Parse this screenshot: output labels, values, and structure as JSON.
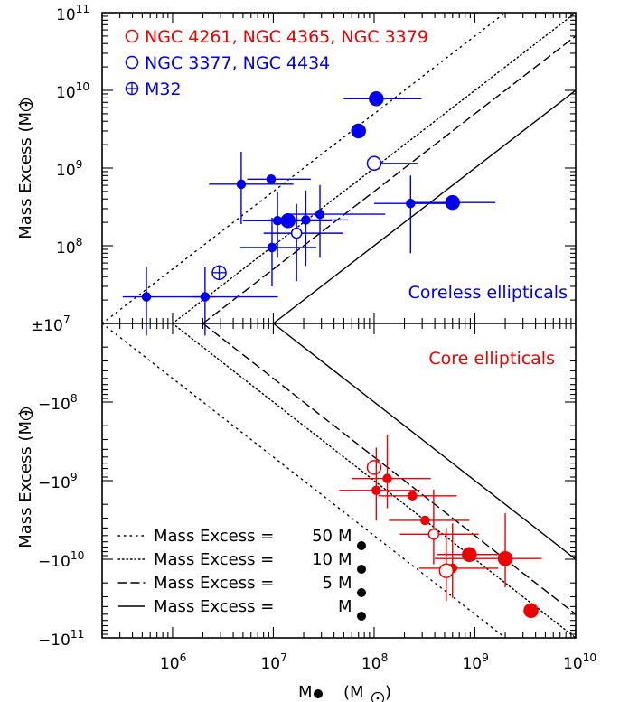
{
  "chart_data": {
    "type": "scatter",
    "x_axis": {
      "label": "M",
      "label_unit": "(M",
      "label_unit_close": ")",
      "scale": "log",
      "range": [
        200000,
        10000000000
      ],
      "ticks": [
        {
          "value": 1000000,
          "base": "10",
          "exp": "6"
        },
        {
          "value": 10000000,
          "base": "10",
          "exp": "7"
        },
        {
          "value": 100000000,
          "base": "10",
          "exp": "8"
        },
        {
          "value": 1000000000,
          "base": "10",
          "exp": "9"
        },
        {
          "value": 10000000000,
          "base": "10",
          "exp": "10"
        }
      ]
    },
    "panels": [
      {
        "id": "top",
        "label": "Coreless ellipticals",
        "label_color": "#0000ee",
        "y_axis": {
          "label": "Mass Excess",
          "unit": "(M",
          "unit_close": ")",
          "scale": "log",
          "range": [
            10000000,
            100000000000
          ],
          "ticks": [
            {
              "value": 100000000000,
              "base": "10",
              "exp": "11"
            },
            {
              "value": 10000000000,
              "base": "10",
              "exp": "10"
            },
            {
              "value": 1000000000,
              "base": "10",
              "exp": "9"
            },
            {
              "value": 100000000,
              "base": "10",
              "exp": "8"
            }
          ]
        },
        "legend": [
          {
            "symbol": "open-circle",
            "color": "#ee0000",
            "text": "NGC 4261, NGC 4365, NGC 3379"
          },
          {
            "symbol": "open-circle",
            "color": "#0000ee",
            "text": "NGC 3377, NGC 4434"
          },
          {
            "symbol": "crossed-circle",
            "color": "#0000ee",
            "text": "M32"
          }
        ],
        "points": [
          {
            "x": 105000000,
            "y": 7800000000,
            "xerr": [
              55000000,
              190000000
            ],
            "yerr": [
              7800000000,
              7800000000
            ],
            "size": "large",
            "fill": true,
            "color": "#0000ee"
          },
          {
            "x": 70000000,
            "y": 3000000000,
            "xerr": [
              70000000,
              70000000
            ],
            "yerr": [
              3000000000,
              3000000000
            ],
            "size": "large",
            "fill": true,
            "color": "#0000ee"
          },
          {
            "x": 100000000,
            "y": 1150000000,
            "xerr": [
              100000000,
              170000000
            ],
            "yerr": [
              1150000000,
              1150000000
            ],
            "size": "large",
            "fill": false,
            "color": "#0000ee"
          },
          {
            "x": 4800000,
            "y": 620000000,
            "xerr": [
              2500000,
              11000000
            ],
            "yerr": [
              430000000,
              1000000000
            ],
            "size": "small",
            "fill": true,
            "color": "#0000ee"
          },
          {
            "x": 9500000,
            "y": 720000000,
            "xerr": [
              4000000,
              14000000
            ],
            "yerr": [
              720000000,
              720000000
            ],
            "size": "small",
            "fill": true,
            "color": "#0000ee"
          },
          {
            "x": 600000000,
            "y": 360000000,
            "xerr": [
              350000000,
              1000000000
            ],
            "yerr": [
              360000000,
              360000000
            ],
            "size": "large",
            "fill": true,
            "color": "#0000ee"
          },
          {
            "x": 230000000,
            "y": 350000000,
            "xerr": [
              130000000,
              400000000
            ],
            "yerr": [
              270000000,
              450000000
            ],
            "size": "small",
            "fill": true,
            "color": "#0000ee"
          },
          {
            "x": 11000000,
            "y": 210000000,
            "xerr": [
              6000000,
              18000000
            ],
            "yerr": [
              140000000,
              290000000
            ],
            "size": "small",
            "fill": true,
            "color": "#0000ee"
          },
          {
            "x": 14000000,
            "y": 210000000,
            "xerr": [
              7000000,
              24000000
            ],
            "yerr": [
              210000000,
              210000000
            ],
            "size": "large",
            "fill": true,
            "color": "#0000ee"
          },
          {
            "x": 21000000,
            "y": 215000000,
            "xerr": [
              12000000,
              34000000
            ],
            "yerr": [
              160000000,
              300000000
            ],
            "size": "small",
            "fill": true,
            "color": "#0000ee"
          },
          {
            "x": 29000000,
            "y": 255000000,
            "xerr": [
              15000000,
              100000000
            ],
            "yerr": [
              185000000,
              350000000
            ],
            "size": "small",
            "fill": true,
            "color": "#0000ee"
          },
          {
            "x": 17000000,
            "y": 145000000,
            "xerr": [
              9000000,
              32000000
            ],
            "yerr": [
              110000000,
              200000000
            ],
            "size": "medium",
            "fill": false,
            "color": "#0000ee"
          },
          {
            "x": 9700000,
            "y": 95000000,
            "xerr": [
              5000000,
              17000000
            ],
            "yerr": [
              65000000,
              135000000
            ],
            "size": "small",
            "fill": true,
            "color": "#0000ee"
          },
          {
            "x": 2900000,
            "y": 45000000,
            "xerr": [
              2900000,
              2900000
            ],
            "yerr": [
              45000000,
              45000000
            ],
            "size": "large",
            "fill": false,
            "cross": true,
            "color": "#0000ee"
          },
          {
            "x": 550000,
            "y": 22000000,
            "xerr": [
              230000,
              2100000
            ],
            "yerr": [
              15000000,
              32000000
            ],
            "size": "small",
            "fill": true,
            "color": "#0000ee"
          },
          {
            "x": 2100000,
            "y": 22000000,
            "xerr": [
              550000,
              9000000
            ],
            "yerr": [
              15000000,
              32000000
            ],
            "size": "small",
            "fill": true,
            "color": "#0000ee"
          }
        ]
      },
      {
        "id": "bottom",
        "label": "Core ellipticals",
        "label_color": "#ee0000",
        "y_axis": {
          "label": "Mass Excess",
          "unit": "(M",
          "unit_close": ")",
          "scale": "negative-log",
          "range": [
            -10000000,
            -100000000000
          ],
          "ticks": [
            {
              "value": -100000000,
              "base": "−10",
              "exp": "8"
            },
            {
              "value": -1000000000,
              "base": "−10",
              "exp": "9"
            },
            {
              "value": -10000000000,
              "base": "−10",
              "exp": "10"
            },
            {
              "value": -100000000000,
              "base": "−10",
              "exp": "11"
            }
          ]
        },
        "points": [
          {
            "x": 100000000,
            "y": -680000000,
            "xerr": [
              100000000,
              100000000
            ],
            "yerr": [
              680000000,
              680000000
            ],
            "size": "large",
            "fill": false,
            "color": "#ee0000"
          },
          {
            "x": 135000000,
            "y": -940000000,
            "xerr": [
              75000000,
              230000000
            ],
            "yerr": [
              680000000,
              1300000000
            ],
            "size": "small",
            "fill": true,
            "color": "#ee0000"
          },
          {
            "x": 105000000,
            "y": -1330000000,
            "xerr": [
              60000000,
              180000000
            ],
            "yerr": [
              950000000,
              1900000000
            ],
            "size": "small",
            "fill": true,
            "color": "#ee0000"
          },
          {
            "x": 240000000,
            "y": -1560000000,
            "xerr": [
              130000000,
              420000000
            ],
            "yerr": [
              1560000000,
              1560000000
            ],
            "size": "small",
            "fill": true,
            "color": "#ee0000"
          },
          {
            "x": 320000000,
            "y": -3200000000,
            "xerr": [
              180000000,
              560000000
            ],
            "yerr": [
              3200000000,
              3200000000
            ],
            "size": "small",
            "fill": true,
            "color": "#ee0000"
          },
          {
            "x": 390000000,
            "y": -4800000000,
            "xerr": [
              210000000,
              700000000
            ],
            "yerr": [
              3500000000,
              6800000000
            ],
            "size": "medium",
            "fill": false,
            "color": "#ee0000"
          },
          {
            "x": 880000000,
            "y": -8700000000,
            "xerr": [
              460000000,
              880000000
            ],
            "yerr": [
              8700000000,
              8700000000
            ],
            "size": "large",
            "fill": true,
            "color": "#ee0000"
          },
          {
            "x": 2000000000,
            "y": -9800000000,
            "xerr": [
              1600000000,
              2600000000
            ],
            "yerr": [
              7200000000,
              13000000000
            ],
            "size": "large",
            "fill": true,
            "color": "#ee0000"
          },
          {
            "x": 600000000,
            "y": -13000000000,
            "xerr": [
              320000000,
              1100000000
            ],
            "yerr": [
              9500000000,
              18000000000
            ],
            "size": "small",
            "fill": true,
            "color": "#ee0000"
          },
          {
            "x": 520000000,
            "y": -14000000000,
            "xerr": [
              520000000,
              520000000
            ],
            "yerr": [
              10000000000,
              20000000000
            ],
            "size": "large",
            "fill": false,
            "color": "#ee0000"
          },
          {
            "x": 3600000000,
            "y": -45000000000,
            "xerr": [
              3600000000,
              3600000000
            ],
            "yerr": [
              45000000000,
              45000000000
            ],
            "size": "large",
            "fill": true,
            "color": "#ee0000"
          }
        ]
      }
    ],
    "shared_tick": {
      "value": 10000000,
      "text": "±10",
      "exp": "7"
    },
    "lines": [
      {
        "style": "dotted-sparse",
        "multiplier": 50,
        "label_prefix": "Mass Excess = ",
        "label_coef": "50",
        "label_symbol": "M"
      },
      {
        "style": "dotted-dense",
        "multiplier": 10,
        "label_prefix": "Mass Excess = ",
        "label_coef": "10",
        "label_symbol": "M"
      },
      {
        "style": "dashed",
        "multiplier": 5,
        "label_prefix": "Mass Excess = ",
        "label_coef": "5",
        "label_symbol": "M"
      },
      {
        "style": "solid",
        "multiplier": 1,
        "label_prefix": "Mass Excess = ",
        "label_coef": "",
        "label_symbol": "M"
      }
    ]
  }
}
